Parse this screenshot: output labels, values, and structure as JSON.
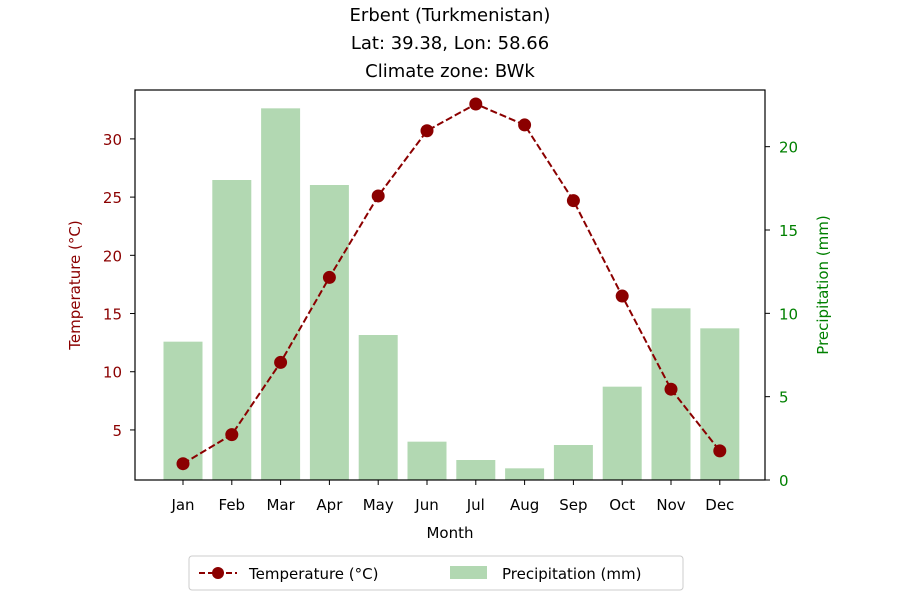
{
  "chart_data": {
    "type": "bar",
    "title_lines": [
      "Erbent (Turkmenistan)",
      "Lat: 39.38, Lon: 58.66",
      "Climate zone: BWk"
    ],
    "xlabel": "Month",
    "ylabel_left": "Temperature (°C)",
    "ylabel_right": "Precipitation (mm)",
    "categories": [
      "Jan",
      "Feb",
      "Mar",
      "Apr",
      "May",
      "Jun",
      "Jul",
      "Aug",
      "Sep",
      "Oct",
      "Nov",
      "Dec"
    ],
    "temperature": {
      "name": "Temperature (°C)",
      "values": [
        2.1,
        4.6,
        10.8,
        18.1,
        25.1,
        30.7,
        33.0,
        31.2,
        24.7,
        16.5,
        8.5,
        3.2
      ],
      "color": "#8b0000",
      "axis": "left",
      "ylim": [
        0.7,
        34.2
      ],
      "ticks": [
        5,
        10,
        15,
        20,
        25,
        30
      ]
    },
    "precipitation": {
      "name": "Precipitation (mm)",
      "values": [
        8.3,
        18.0,
        22.3,
        17.7,
        8.7,
        2.3,
        1.2,
        0.7,
        2.1,
        5.6,
        10.3,
        9.1
      ],
      "color": "#b2d8b2",
      "axis": "right",
      "ylim": [
        0,
        23.4
      ],
      "ticks": [
        0,
        5,
        10,
        15,
        20
      ]
    },
    "axis_colors": {
      "left": "#8b0000",
      "right": "#008000"
    },
    "legend_position": "bottom-center",
    "grid": false
  }
}
